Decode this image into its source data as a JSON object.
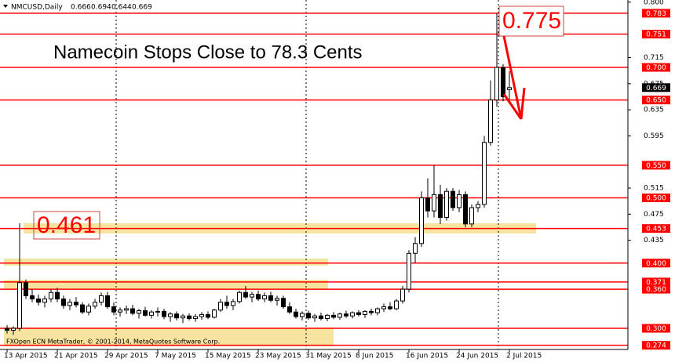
{
  "chart_data": {
    "type": "candlestick",
    "symbol": "NMCUSD,Daily",
    "title": "Namecoin Stops Close to 78.3 Cents",
    "annotations": [
      "0.775",
      "0.461"
    ],
    "footer": "FXOpen ECN MetaTrader, © 2001-2014, MetaQuotes Software Corp.",
    "categories": [
      "13 Apr 2015",
      null,
      null,
      null,
      null,
      null,
      null,
      null,
      "21 Apr 2015",
      null,
      null,
      null,
      null,
      null,
      null,
      null,
      "29 Apr 2015",
      null,
      null,
      null,
      null,
      null,
      null,
      null,
      "7 May 2015",
      null,
      null,
      null,
      null,
      null,
      null,
      null,
      "15 May 2015",
      null,
      null,
      null,
      null,
      null,
      null,
      null,
      "23 May 2015",
      null,
      null,
      null,
      null,
      null,
      null,
      null,
      "31 May 2015",
      null,
      null,
      null,
      null,
      null,
      null,
      null,
      "8 Jun 2015",
      null,
      null,
      null,
      null,
      null,
      null,
      null,
      "16 Jun 2015",
      null,
      null,
      null,
      null,
      null,
      null,
      null,
      "24 Jun 2015",
      null,
      null,
      null,
      null,
      null,
      null,
      null,
      "2 Jul 2015"
    ],
    "open": [
      0.3,
      0.297,
      0.3,
      0.37,
      0.35,
      0.345,
      0.34,
      0.345,
      0.355,
      0.345,
      0.335,
      0.34,
      0.336,
      0.325,
      0.334,
      0.34,
      0.35,
      0.333,
      0.325,
      0.328,
      0.33,
      0.323,
      0.327,
      0.32,
      0.325,
      0.326,
      0.318,
      0.322,
      0.316,
      0.319,
      0.315,
      0.318,
      0.321,
      0.317,
      0.328,
      0.34,
      0.335,
      0.341,
      0.355,
      0.348,
      0.352,
      0.345,
      0.35,
      0.343,
      0.346,
      0.333,
      0.325,
      0.318,
      0.323,
      0.316,
      0.319,
      0.315,
      0.32,
      0.317,
      0.322,
      0.319,
      0.324,
      0.321,
      0.326,
      0.324,
      0.33,
      0.333,
      0.33,
      0.342,
      0.36,
      0.415,
      0.43,
      0.5,
      0.48,
      0.505,
      0.47,
      0.51,
      0.485,
      0.505,
      0.46,
      0.485,
      0.49,
      0.585,
      0.65,
      0.7,
      0.666
    ],
    "high": [
      0.305,
      0.303,
      0.461,
      0.375,
      0.36,
      0.352,
      0.35,
      0.36,
      0.362,
      0.35,
      0.345,
      0.348,
      0.34,
      0.338,
      0.345,
      0.355,
      0.356,
      0.34,
      0.332,
      0.335,
      0.336,
      0.33,
      0.333,
      0.328,
      0.332,
      0.33,
      0.325,
      0.326,
      0.322,
      0.323,
      0.322,
      0.325,
      0.326,
      0.33,
      0.345,
      0.35,
      0.345,
      0.358,
      0.365,
      0.356,
      0.358,
      0.355,
      0.356,
      0.35,
      0.35,
      0.34,
      0.33,
      0.326,
      0.327,
      0.322,
      0.324,
      0.322,
      0.325,
      0.324,
      0.327,
      0.326,
      0.328,
      0.328,
      0.33,
      0.332,
      0.338,
      0.34,
      0.345,
      0.365,
      0.42,
      0.44,
      0.51,
      0.53,
      0.55,
      0.52,
      0.515,
      0.515,
      0.512,
      0.51,
      0.49,
      0.495,
      0.595,
      0.68,
      0.783,
      0.705,
      0.694
    ],
    "low": [
      0.292,
      0.29,
      0.296,
      0.345,
      0.34,
      0.335,
      0.332,
      0.34,
      0.34,
      0.33,
      0.328,
      0.332,
      0.322,
      0.32,
      0.33,
      0.335,
      0.33,
      0.32,
      0.318,
      0.322,
      0.32,
      0.315,
      0.318,
      0.315,
      0.318,
      0.314,
      0.31,
      0.312,
      0.308,
      0.312,
      0.31,
      0.313,
      0.314,
      0.315,
      0.325,
      0.33,
      0.328,
      0.338,
      0.345,
      0.34,
      0.342,
      0.34,
      0.34,
      0.335,
      0.33,
      0.322,
      0.315,
      0.312,
      0.313,
      0.31,
      0.312,
      0.311,
      0.314,
      0.313,
      0.316,
      0.315,
      0.318,
      0.316,
      0.32,
      0.32,
      0.325,
      0.328,
      0.328,
      0.338,
      0.355,
      0.4,
      0.425,
      0.47,
      0.47,
      0.46,
      0.465,
      0.48,
      0.478,
      0.455,
      0.455,
      0.478,
      0.485,
      0.58,
      0.64,
      0.648,
      0.644
    ],
    "close": [
      0.297,
      0.3,
      0.37,
      0.35,
      0.345,
      0.34,
      0.345,
      0.355,
      0.345,
      0.335,
      0.34,
      0.336,
      0.325,
      0.334,
      0.34,
      0.35,
      0.333,
      0.325,
      0.328,
      0.33,
      0.323,
      0.327,
      0.32,
      0.325,
      0.326,
      0.318,
      0.322,
      0.316,
      0.319,
      0.315,
      0.318,
      0.321,
      0.317,
      0.328,
      0.34,
      0.335,
      0.341,
      0.355,
      0.348,
      0.352,
      0.345,
      0.35,
      0.343,
      0.346,
      0.333,
      0.325,
      0.318,
      0.323,
      0.316,
      0.319,
      0.315,
      0.32,
      0.317,
      0.322,
      0.319,
      0.324,
      0.321,
      0.326,
      0.324,
      0.33,
      0.333,
      0.33,
      0.342,
      0.36,
      0.415,
      0.43,
      0.5,
      0.48,
      0.505,
      0.47,
      0.51,
      0.485,
      0.505,
      0.46,
      0.485,
      0.49,
      0.585,
      0.65,
      0.7,
      0.655,
      0.669
    ],
    "ylim": [
      0.2676,
      0.8033
    ],
    "yticks": [
      {
        "value": 0.8,
        "label": "0.800"
      },
      0.715,
      0.675,
      0.635,
      0.595,
      0.515,
      0.475,
      0.435
    ],
    "levels": [
      {
        "value": 0.783,
        "label": "0.783"
      },
      {
        "value": 0.751,
        "label": "0.751"
      },
      {
        "value": 0.7,
        "label": "0.700"
      },
      {
        "value": 0.65,
        "label": "0.650"
      },
      {
        "value": 0.55,
        "label": "0.550"
      },
      {
        "value": 0.5,
        "label": "0.500"
      },
      {
        "value": 0.453,
        "label": "0.453"
      },
      {
        "value": 0.4,
        "label": "0.400"
      },
      {
        "value": 0.371,
        "label": "0.371"
      },
      {
        "value": 0.36,
        "label": "0.360"
      },
      {
        "value": 0.3,
        "label": "0.300"
      },
      {
        "value": 0.274,
        "label": "0.274"
      }
    ],
    "level_color": "#ff0000",
    "bull_color": "#ffffff",
    "bear_color": "#000000"
  }
}
